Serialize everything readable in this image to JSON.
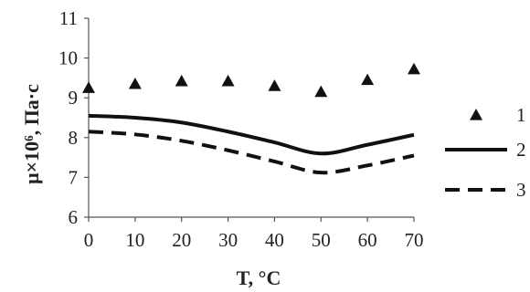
{
  "chart_data": {
    "type": "line",
    "x": [
      0,
      10,
      20,
      30,
      40,
      50,
      60,
      70
    ],
    "xlim": [
      0,
      70
    ],
    "ylim": [
      6,
      11
    ],
    "xticks": [
      "0",
      "10",
      "20",
      "30",
      "40",
      "50",
      "60",
      "70"
    ],
    "yticks": [
      "6",
      "7",
      "8",
      "9",
      "10",
      "11"
    ],
    "xlabel": "T, °C",
    "ylabel": "μ×10⁶, Па·с",
    "grid": false,
    "legend_position": "right",
    "series": [
      {
        "name": "1",
        "style": "triangle-markers",
        "color": "#111111",
        "values": [
          9.25,
          9.35,
          9.42,
          9.42,
          9.3,
          9.15,
          9.45,
          9.72
        ]
      },
      {
        "name": "2",
        "style": "solid-line",
        "color": "#111111",
        "values": [
          8.55,
          8.5,
          8.38,
          8.15,
          7.88,
          7.6,
          7.82,
          8.07
        ]
      },
      {
        "name": "3",
        "style": "dashed-line",
        "color": "#111111",
        "values": [
          8.15,
          8.08,
          7.92,
          7.68,
          7.4,
          7.12,
          7.3,
          7.55
        ]
      }
    ]
  }
}
